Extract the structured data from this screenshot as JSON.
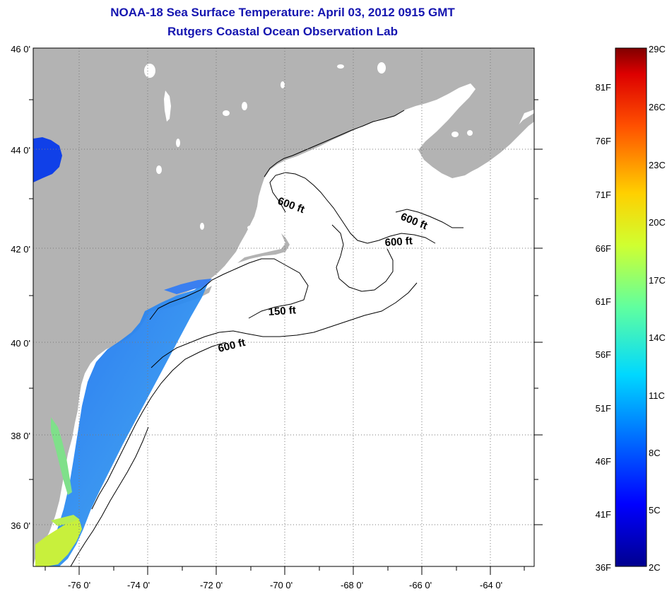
{
  "title": {
    "line1": "NOAA-18 Sea Surface Temperature:  April 03, 2012 0915 GMT",
    "line2": "Rutgers Coastal Ocean Observation Lab"
  },
  "map": {
    "lat_labels": [
      "46 0'",
      "44 0'",
      "42 0'",
      "40 0'",
      "38 0'",
      "36 0'"
    ],
    "lon_labels": [
      "-76 0'",
      "-74 0'",
      "-72 0'",
      "-70 0'",
      "-68 0'",
      "-66 0'",
      "-64 0'"
    ],
    "contour_labels": [
      "600 ft",
      "600 ft",
      "600 ft",
      "150 ft",
      "600 ft"
    ],
    "colors": {
      "land": "#b3b3b3",
      "ocean": "#ffffff",
      "grid": "#7a7a7a"
    }
  },
  "colorbar": {
    "fahrenheit_labels": [
      "81F",
      "76F",
      "71F",
      "66F",
      "61F",
      "56F",
      "51F",
      "46F",
      "41F",
      "36F"
    ],
    "celsius_labels": [
      "29C",
      "26C",
      "23C",
      "20C",
      "17C",
      "14C",
      "11C",
      "8C",
      "5C",
      "2C"
    ]
  }
}
